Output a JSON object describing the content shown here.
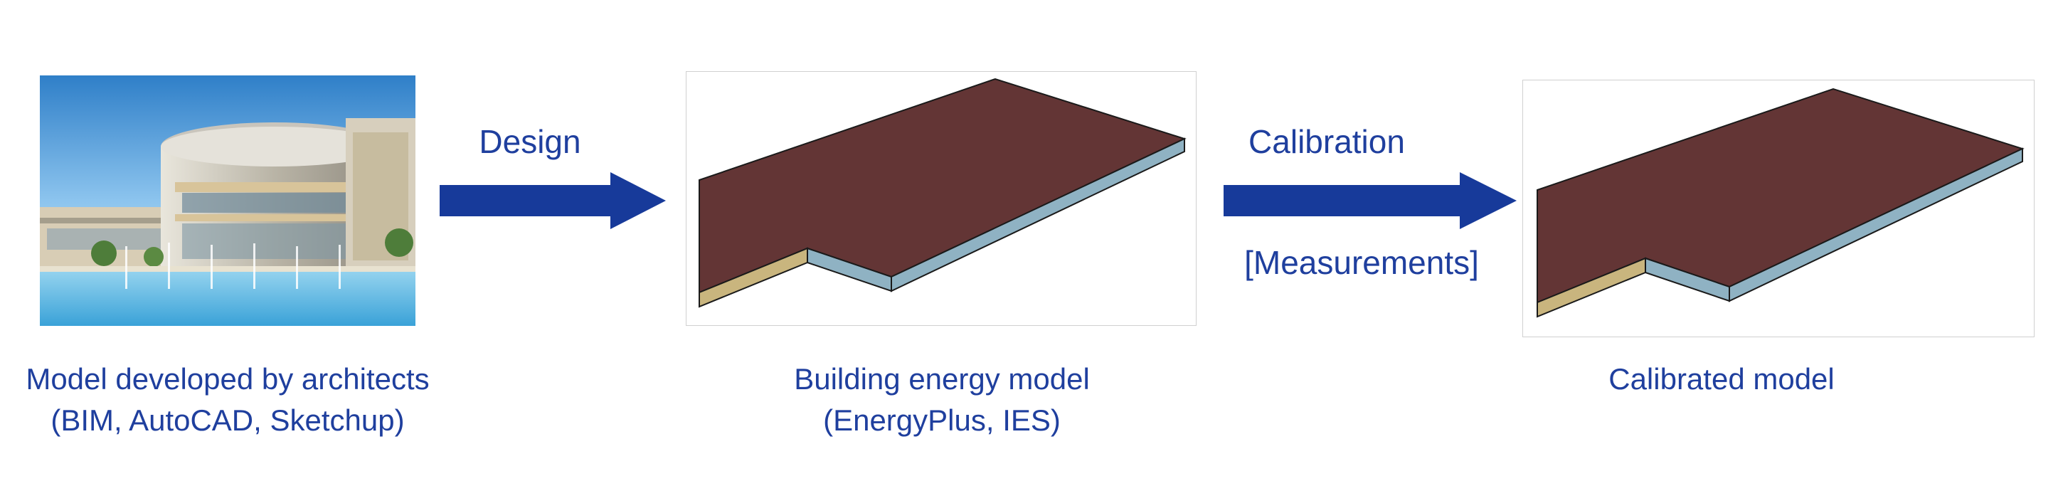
{
  "steps": [
    {
      "caption_line1": "Model developed by architects",
      "caption_line2": "(BIM, AutoCAD, Sketchup)",
      "image": "architectural-rendering-photo"
    },
    {
      "caption_line1": "Building energy model",
      "caption_line2": "(EnergyPlus, IES)",
      "image": "3d-slab-model"
    },
    {
      "caption_line1": "Calibrated model",
      "image": "3d-slab-model"
    }
  ],
  "arrows": [
    {
      "label_top": "Design"
    },
    {
      "label_top": "Calibration",
      "label_bottom": "[Measurements]"
    }
  ],
  "colors": {
    "text": "#1f3f9e",
    "arrow": "#173a9a",
    "slab_top": "#633535",
    "slab_side_front": "#8fb2c3",
    "slab_side_left": "#c9b57e",
    "edge": "#1a1a1a"
  }
}
